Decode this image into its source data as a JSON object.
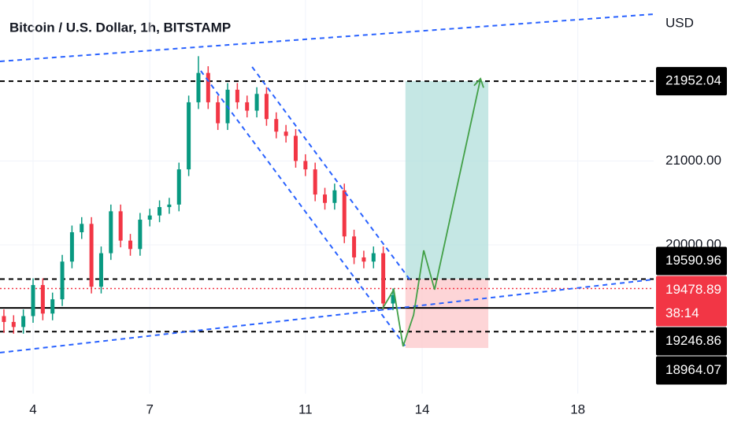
{
  "chart_data": {
    "type": "candlestick",
    "title": "Bitcoin / U.S. Dollar, 1h, BITSTAMP",
    "currency": "USD",
    "xlim": [
      3.15,
      19.95
    ],
    "ylim": [
      18225,
      22920
    ],
    "xticks": [
      4,
      7,
      11,
      14,
      18
    ],
    "yticks": [
      {
        "value": 21000,
        "label": "21000.00"
      },
      {
        "value": 20000,
        "label": "20000.00"
      }
    ],
    "grid": true,
    "up_color": "#089981",
    "down_color": "#f23645",
    "x": [
      3.25,
      3.5,
      3.75,
      4,
      4.25,
      4.5,
      4.75,
      5,
      5.25,
      5.5,
      5.75,
      6,
      6.25,
      6.5,
      6.75,
      7,
      7.25,
      7.5,
      7.75,
      8,
      8.25,
      8.5,
      8.75,
      9,
      9.25,
      9.5,
      9.75,
      10,
      10.25,
      10.5,
      10.75,
      11,
      11.25,
      11.5,
      11.75,
      12,
      12.25,
      12.5,
      12.75,
      13,
      13.25
    ],
    "open": [
      19150,
      19080,
      19020,
      19150,
      19520,
      19180,
      19350,
      19800,
      20150,
      20250,
      19500,
      19900,
      20400,
      20050,
      19950,
      20300,
      20350,
      20450,
      20480,
      20900,
      21700,
      22050,
      21700,
      21450,
      21850,
      21700,
      21600,
      21800,
      21500,
      21350,
      21300,
      21000,
      20900,
      20600,
      20500,
      20650,
      20100,
      19850,
      19800,
      19900,
      19300
    ],
    "high": [
      19230,
      19160,
      19230,
      19600,
      19600,
      19430,
      19880,
      20230,
      20330,
      20330,
      19980,
      20480,
      20480,
      20130,
      20380,
      20430,
      20530,
      20560,
      20980,
      21780,
      22250,
      22130,
      21780,
      21930,
      21930,
      21780,
      21880,
      21880,
      21580,
      21430,
      21380,
      21080,
      20980,
      20680,
      20730,
      20730,
      20180,
      19930,
      19980,
      19980,
      19480
    ],
    "low": [
      18950,
      18940,
      18940,
      19070,
      19100,
      19100,
      19270,
      19720,
      20070,
      19420,
      19420,
      19820,
      19970,
      19870,
      19870,
      20220,
      20270,
      20370,
      20400,
      20820,
      21620,
      21620,
      21370,
      21370,
      21620,
      21520,
      21520,
      21420,
      21270,
      21220,
      20920,
      20820,
      20520,
      20420,
      20420,
      20020,
      19770,
      19720,
      19720,
      19220,
      19220
    ],
    "close": [
      19080,
      19020,
      19150,
      19520,
      19180,
      19350,
      19800,
      20150,
      20250,
      19500,
      19900,
      20400,
      20050,
      19950,
      20300,
      20350,
      20450,
      20480,
      20900,
      21700,
      22050,
      21700,
      21450,
      21850,
      21700,
      21600,
      21800,
      21500,
      21350,
      21300,
      21000,
      20900,
      20600,
      20500,
      20650,
      20100,
      19850,
      19800,
      19900,
      19300,
      19400
    ],
    "levels": [
      {
        "value": 21952.04,
        "style": "dashed",
        "color": "#000000"
      },
      {
        "value": 19590.96,
        "style": "dashed",
        "color": "#000000"
      },
      {
        "value": 19478.89,
        "style": "dotted",
        "color": "#f23645",
        "countdown": "38:14"
      },
      {
        "value": 19246.86,
        "style": "solid",
        "color": "#000000"
      },
      {
        "value": 18964.07,
        "style": "dashed",
        "color": "#000000"
      }
    ],
    "trendlines": [
      {
        "x": [
          3.15,
          19.95
        ],
        "y": [
          22188,
          22751
        ]
      },
      {
        "x": [
          3.15,
          19.95
        ],
        "y": [
          18714,
          19587
        ]
      },
      {
        "x": [
          9.63,
          13.68
        ],
        "y": [
          22122,
          19587
        ]
      },
      {
        "x": [
          8.31,
          13.57
        ],
        "y": [
          22075,
          18789
        ]
      }
    ],
    "trendline_color": "#2962ff",
    "position": {
      "x": [
        13.57,
        15.7
      ],
      "entry": 19590.96,
      "target": 21952.04,
      "stop": 18770,
      "profit_color": "#b2dfdb",
      "loss_color": "#fccbcd"
    },
    "projection": {
      "x": [
        12.97,
        13.27,
        13.51,
        13.78,
        14.04,
        14.32,
        15.5
      ],
      "y": [
        19230,
        19465,
        18789,
        19164,
        19934,
        19465,
        21981
      ],
      "color": "#43a047"
    }
  }
}
